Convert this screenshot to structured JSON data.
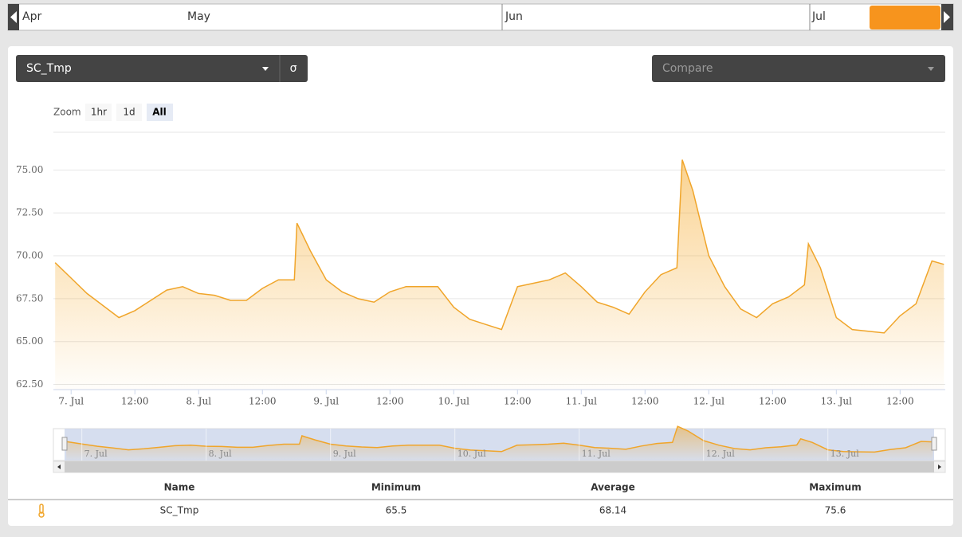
{
  "timeline": {
    "months": [
      "Apr",
      "May",
      "Jun",
      "Jul"
    ]
  },
  "selector": {
    "sensor": "SC_Tmp",
    "sigma": "σ",
    "compare": "Compare"
  },
  "zoom": {
    "label": "Zoom",
    "buttons": [
      "1hr",
      "1d",
      "All"
    ]
  },
  "chart_data": {
    "type": "area",
    "color": "#f0a52a",
    "grid": true,
    "x": [
      "6. Jul 21:00",
      "7. Jul 00:00",
      "7. Jul 03:00",
      "7. Jul 06:00",
      "7. Jul 09:00",
      "7. Jul 12:00",
      "7. Jul 15:00",
      "7. Jul 18:00",
      "7. Jul 21:00",
      "8. Jul 00:00",
      "8. Jul 03:00",
      "8. Jul 06:00",
      "8. Jul 09:00",
      "8. Jul 12:00",
      "8. Jul 15:00",
      "8. Jul 18:00",
      "8. Jul 18:30",
      "8. Jul 21:00",
      "9. Jul 00:00",
      "9. Jul 03:00",
      "9. Jul 06:00",
      "9. Jul 09:00",
      "9. Jul 12:00",
      "9. Jul 15:00",
      "9. Jul 18:00",
      "9. Jul 21:00",
      "10. Jul 00:00",
      "10. Jul 03:00",
      "10. Jul 06:00",
      "10. Jul 09:00",
      "10. Jul 12:00",
      "10. Jul 15:00",
      "10. Jul 18:00",
      "10. Jul 21:00",
      "11. Jul 00:00",
      "11. Jul 03:00",
      "11. Jul 06:00",
      "11. Jul 09:00",
      "11. Jul 12:00",
      "11. Jul 15:00",
      "11. Jul 18:00",
      "11. Jul 19:00",
      "11. Jul 21:00",
      "12. Jul 00:00",
      "12. Jul 03:00",
      "12. Jul 06:00",
      "12. Jul 09:00",
      "12. Jul 12:00",
      "12. Jul 15:00",
      "12. Jul 18:00",
      "12. Jul 18:45",
      "12. Jul 21:00",
      "13. Jul 00:00",
      "13. Jul 03:00",
      "13. Jul 06:00",
      "13. Jul 09:00",
      "13. Jul 12:00",
      "13. Jul 15:00",
      "13. Jul 18:00",
      "13. Jul 20:15"
    ],
    "values": [
      69.6,
      68.7,
      67.8,
      67.1,
      66.4,
      66.8,
      67.4,
      68.0,
      68.2,
      67.8,
      67.7,
      67.4,
      67.4,
      68.1,
      68.6,
      68.6,
      71.9,
      70.3,
      68.6,
      67.9,
      67.5,
      67.3,
      67.9,
      68.2,
      68.2,
      68.2,
      67.0,
      66.3,
      66.0,
      65.7,
      68.2,
      68.4,
      68.6,
      69.0,
      68.2,
      67.3,
      67.0,
      66.6,
      67.9,
      68.9,
      69.3,
      75.6,
      73.8,
      70.0,
      68.2,
      66.9,
      66.4,
      67.2,
      67.6,
      68.3,
      70.7,
      69.3,
      66.4,
      65.7,
      65.6,
      65.5,
      66.5,
      67.2,
      69.7,
      69.5
    ],
    "xlim": [
      "6. Jul 20:40",
      "13. Jul 20:30"
    ],
    "xticks": [
      {
        "value": "7. Jul 00:00",
        "label": "7. Jul"
      },
      {
        "value": "7. Jul 12:00",
        "label": "12:00"
      },
      {
        "value": "8. Jul 00:00",
        "label": "8. Jul"
      },
      {
        "value": "8. Jul 12:00",
        "label": "12:00"
      },
      {
        "value": "9. Jul 00:00",
        "label": "9. Jul"
      },
      {
        "value": "9. Jul 12:00",
        "label": "12:00"
      },
      {
        "value": "10. Jul 00:00",
        "label": "10. Jul"
      },
      {
        "value": "10. Jul 12:00",
        "label": "12:00"
      },
      {
        "value": "11. Jul 00:00",
        "label": "11. Jul"
      },
      {
        "value": "11. Jul 12:00",
        "label": "12:00"
      },
      {
        "value": "12. Jul 00:00",
        "label": "12. Jul"
      },
      {
        "value": "12. Jul 12:00",
        "label": "12:00"
      },
      {
        "value": "13. Jul 00:00",
        "label": "13. Jul"
      },
      {
        "value": "13. Jul 12:00",
        "label": "12:00"
      }
    ],
    "ylim": [
      62.2,
      77.2
    ],
    "yticks": [
      {
        "value": 62.5,
        "label": "62.50"
      },
      {
        "value": 65,
        "label": "65.00"
      },
      {
        "value": 67.5,
        "label": "67.50"
      },
      {
        "value": 70,
        "label": "70.00"
      },
      {
        "value": 72.5,
        "label": "72.50"
      },
      {
        "value": 75,
        "label": "75.00"
      }
    ],
    "navigator_ticks": [
      {
        "value": "7. Jul 00:00",
        "label": "7. Jul"
      },
      {
        "value": "8. Jul 00:00",
        "label": "8. Jul"
      },
      {
        "value": "9. Jul 00:00",
        "label": "9. Jul"
      },
      {
        "value": "10. Jul 00:00",
        "label": "10. Jul"
      },
      {
        "value": "11. Jul 00:00",
        "label": "11. Jul"
      },
      {
        "value": "12. Jul 00:00",
        "label": "12. Jul"
      },
      {
        "value": "13. Jul 00:00",
        "label": "13. Jul"
      }
    ]
  },
  "table": {
    "header": [
      "Name",
      "Minimum",
      "Average",
      "Maximum"
    ],
    "rows": [
      [
        "SC_Tmp",
        "65.5",
        "68.14",
        "75.6"
      ]
    ]
  }
}
